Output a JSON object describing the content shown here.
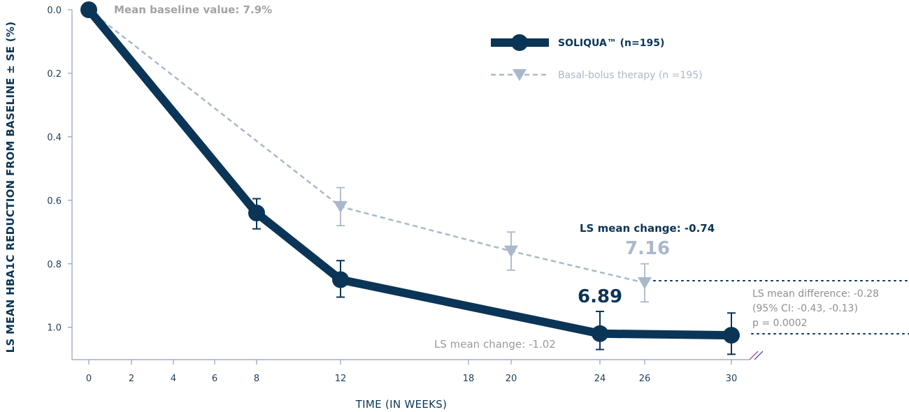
{
  "chart_data": {
    "type": "line",
    "ylabel": "LS MEAN HBA1C REDUCTION FROM BASELINE ± SE (%)",
    "xlabel": "TIME (IN WEEKS)",
    "x_ticks": [
      0,
      2,
      4,
      6,
      8,
      12,
      18,
      20,
      24,
      26,
      30
    ],
    "y_ticks": [
      "0.0",
      "0.2",
      "0.4",
      "0.6",
      "0.8",
      "1.0"
    ],
    "ylim": [
      0,
      1.1
    ],
    "y_inverted": true,
    "series": [
      {
        "name": "SOLIQUA™ (n=195)",
        "color": "#0b3556",
        "marker": "circle",
        "points": [
          {
            "x": 0,
            "y": 0.0,
            "err_up": 0,
            "err_down": 0
          },
          {
            "x": 8,
            "y": 0.64,
            "err_up": 0.045,
            "err_down": 0.05
          },
          {
            "x": 12,
            "y": 0.85,
            "err_up": 0.06,
            "err_down": 0.055
          },
          {
            "x": 24,
            "y": 1.02,
            "err_up": 0.07,
            "err_down": 0.05
          },
          {
            "x": 30,
            "y": 1.025,
            "err_up": 0.07,
            "err_down": 0.06
          }
        ]
      },
      {
        "name": "Basal-bolus therapy (n =195)",
        "color": "#a9b8ca",
        "marker": "triangle-down",
        "points": [
          {
            "x": 0,
            "y": 0.0,
            "err_up": 0,
            "err_down": 0
          },
          {
            "x": 12,
            "y": 0.62,
            "err_up": 0.06,
            "err_down": 0.06
          },
          {
            "x": 20,
            "y": 0.76,
            "err_up": 0.06,
            "err_down": 0.06
          },
          {
            "x": 26,
            "y": 0.86,
            "err_up": 0.06,
            "err_down": 0.06
          }
        ]
      }
    ],
    "annotations": {
      "baseline": "Mean baseline value: 7.9%",
      "ls_change_bb": "LS mean change: -0.74",
      "value_bb": "7.16",
      "value_sol": "6.89",
      "ls_change_sol": "LS mean change: -1.02",
      "diff_line1": "LS mean difference: -0.28",
      "diff_line2": "(95% CI: -0.43, -0.13)",
      "diff_line3": "p = 0.0002"
    },
    "legend_position": "top-right",
    "grid": false
  }
}
